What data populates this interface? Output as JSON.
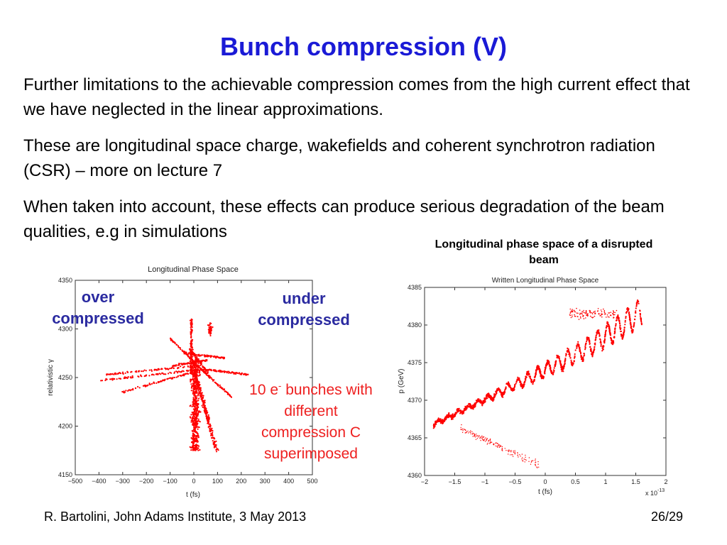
{
  "title": "Bunch compression (V)",
  "paragraphs": [
    "Further limitations to the achievable compression comes from the high current effect that we have neglected in the linear approximations.",
    "These are longitudinal space charge, wakefields and coherent synchrotron radiation (CSR) – more on lecture 7",
    "When taken into account, these effects can produce serious degradation of the beam qualities, e.g in simulations"
  ],
  "right_caption": "Longitudinal phase space of a disrupted beam",
  "labels": {
    "over": "over compressed",
    "under": "under compressed",
    "note_prefix": "10 e",
    "note_sup": "-",
    "note_rest": " bunches with different compression C superimposed"
  },
  "footer": {
    "left": "R. Bartolini, John Adams Institute, 3 May 2013",
    "right": "26/29"
  },
  "chart_data": [
    {
      "type": "scatter",
      "title": "Longitudinal Phase Space",
      "xlabel": "t (fs)",
      "ylabel": "relativistic γ",
      "xlim": [
        -500,
        500
      ],
      "ylim": [
        4150,
        4350
      ],
      "xticks": [
        -500,
        -400,
        -300,
        -200,
        -100,
        0,
        100,
        200,
        300,
        400,
        500
      ],
      "yticks": [
        4150,
        4200,
        4250,
        4300,
        4350
      ],
      "color": "#ff0000"
    },
    {
      "type": "scatter",
      "title": "Written Longitudinal Phase Space",
      "xlabel": "t (fs)",
      "ylabel": "p (GeV)",
      "xlim": [
        -2,
        2
      ],
      "ylim": [
        4360,
        4385
      ],
      "xticks": [
        -2,
        -1.5,
        -1,
        -0.5,
        0,
        0.5,
        1,
        1.5,
        2
      ],
      "yticks": [
        4360,
        4365,
        4370,
        4375,
        4380,
        4385
      ],
      "x_multiplier": "x 10",
      "x_multiplier_exp": "-13",
      "color": "#ff0000"
    }
  ]
}
